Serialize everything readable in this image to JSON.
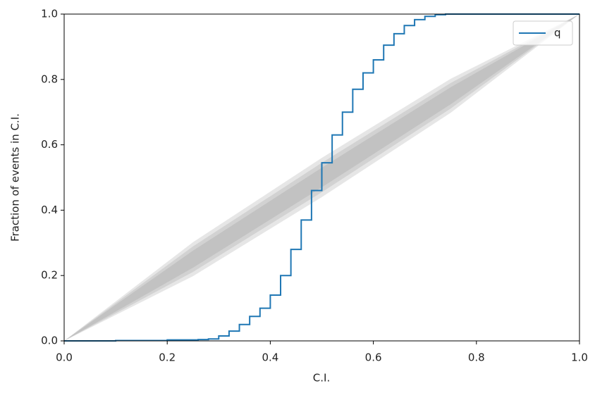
{
  "chart_data": {
    "type": "step",
    "xlabel": "C.I.",
    "ylabel": "Fraction of events in C.I.",
    "xlim": [
      0,
      1
    ],
    "ylim": [
      0,
      1
    ],
    "xticks": [
      {
        "value": 0,
        "label": "0.0"
      },
      0.2,
      0.4,
      0.6,
      0.8,
      {
        "value": 1,
        "label": "1.0"
      }
    ],
    "yticks": [
      {
        "value": 0,
        "label": "0.0"
      },
      0.2,
      0.4,
      0.6,
      0.8,
      {
        "value": 1,
        "label": "1.0"
      }
    ],
    "legend": "upper right",
    "bands": {
      "color": "#808080",
      "x": [
        0,
        0.25,
        0.5,
        0.75,
        1
      ],
      "levels": [
        {
          "lower": [
            0,
            0.198,
            0.44,
            0.698,
            1
          ],
          "upper": [
            0,
            0.302,
            0.56,
            0.802,
            1
          ]
        },
        {
          "lower": [
            0,
            0.211,
            0.455,
            0.711,
            1
          ],
          "upper": [
            0,
            0.289,
            0.545,
            0.789,
            1
          ]
        },
        {
          "lower": [
            0,
            0.224,
            0.47,
            0.724,
            1
          ],
          "upper": [
            0,
            0.276,
            0.53,
            0.776,
            1
          ]
        }
      ]
    },
    "x": [
      0,
      0.1,
      0.2,
      0.26,
      0.28,
      0.3,
      0.32,
      0.34,
      0.36,
      0.38,
      0.4,
      0.42,
      0.44,
      0.46,
      0.48,
      0.5,
      0.52,
      0.54,
      0.56,
      0.58,
      0.6,
      0.62,
      0.64,
      0.66,
      0.68,
      0.7,
      0.72,
      0.74,
      1
    ],
    "series": [
      {
        "name": "q",
        "color": "#1f77b4",
        "values": [
          0,
          0.001,
          0.003,
          0.004,
          0.006,
          0.015,
          0.03,
          0.05,
          0.075,
          0.1,
          0.14,
          0.2,
          0.28,
          0.37,
          0.46,
          0.545,
          0.63,
          0.7,
          0.77,
          0.82,
          0.86,
          0.905,
          0.94,
          0.965,
          0.983,
          0.993,
          0.998,
          1,
          1
        ]
      }
    ]
  }
}
